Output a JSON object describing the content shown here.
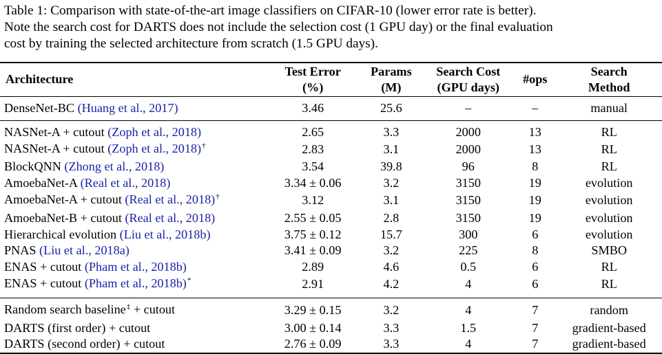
{
  "caption": {
    "line1": "Table 1: Comparison with state-of-the-art image classifiers on CIFAR-10 (lower error rate is better).",
    "line2": "Note the search cost for DARTS does not include the selection cost (1 GPU day) or the final evaluation",
    "line3": "cost by training the selected architecture from scratch (1.5 GPU days)."
  },
  "headers": {
    "architecture": "Architecture",
    "test_error_1": "Test Error",
    "test_error_2": "(%)",
    "params_1": "Params",
    "params_2": "(M)",
    "search_cost_1": "Search Cost",
    "search_cost_2": "(GPU days)",
    "ops": "#ops",
    "search_method_1": "Search",
    "search_method_2": "Method"
  },
  "rows": [
    {
      "name": "DenseNet-BC ",
      "cite": "(Huang et al., 2017)",
      "mark": "",
      "error": "3.46",
      "params": "25.6",
      "cost": "–",
      "ops": "–",
      "method": "manual"
    },
    {
      "name": "NASNet-A + cutout ",
      "cite": "(Zoph et al., 2018)",
      "mark": "",
      "error": "2.65",
      "params": "3.3",
      "cost": "2000",
      "ops": "13",
      "method": "RL"
    },
    {
      "name": "NASNet-A + cutout ",
      "cite": "(Zoph et al., 2018)",
      "mark": "†",
      "error": "2.83",
      "params": "3.1",
      "cost": "2000",
      "ops": "13",
      "method": "RL"
    },
    {
      "name": "BlockQNN ",
      "cite": "(Zhong et al., 2018)",
      "mark": "",
      "error": "3.54",
      "params": "39.8",
      "cost": "96",
      "ops": "8",
      "method": "RL"
    },
    {
      "name": "AmoebaNet-A ",
      "cite": "(Real et al., 2018)",
      "mark": "",
      "error": "3.34 ± 0.06",
      "params": "3.2",
      "cost": "3150",
      "ops": "19",
      "method": "evolution"
    },
    {
      "name": "AmoebaNet-A + cutout ",
      "cite": "(Real et al., 2018)",
      "mark": "†",
      "error": "3.12",
      "params": "3.1",
      "cost": "3150",
      "ops": "19",
      "method": "evolution"
    },
    {
      "name": "AmoebaNet-B + cutout ",
      "cite": "(Real et al., 2018)",
      "mark": "",
      "error": "2.55 ± 0.05",
      "params": "2.8",
      "cost": "3150",
      "ops": "19",
      "method": "evolution"
    },
    {
      "name": "Hierarchical evolution ",
      "cite": "(Liu et al., 2018b)",
      "mark": "",
      "error": "3.75 ± 0.12",
      "params": "15.7",
      "cost": "300",
      "ops": "6",
      "method": "evolution"
    },
    {
      "name": "PNAS ",
      "cite": "(Liu et al., 2018a)",
      "mark": "",
      "error": "3.41 ± 0.09",
      "params": "3.2",
      "cost": "225",
      "ops": "8",
      "method": "SMBO"
    },
    {
      "name": "ENAS + cutout ",
      "cite": "(Pham et al., 2018b)",
      "mark": "",
      "error": "2.89",
      "params": "4.6",
      "cost": "0.5",
      "ops": "6",
      "method": "RL"
    },
    {
      "name": "ENAS + cutout ",
      "cite": "(Pham et al., 2018b)",
      "mark": "*",
      "error": "2.91",
      "params": "4.2",
      "cost": "4",
      "ops": "6",
      "method": "RL"
    },
    {
      "name": "Random search baseline",
      "cite": "",
      "mark": "‡",
      "suffix": " + cutout",
      "error": "3.29 ± 0.15",
      "params": "3.2",
      "cost": "4",
      "ops": "7",
      "method": "random"
    },
    {
      "name": "DARTS (first order) + cutout",
      "cite": "",
      "mark": "",
      "error": "3.00 ± 0.14",
      "params": "3.3",
      "cost": "1.5",
      "ops": "7",
      "method": "gradient-based"
    },
    {
      "name": "DARTS (second order) + cutout",
      "cite": "",
      "mark": "",
      "error": "2.76 ± 0.09",
      "params": "3.3",
      "cost": "4",
      "ops": "7",
      "method": "gradient-based"
    }
  ],
  "colors": {
    "citation": "#1a22a8",
    "text": "#000000"
  }
}
